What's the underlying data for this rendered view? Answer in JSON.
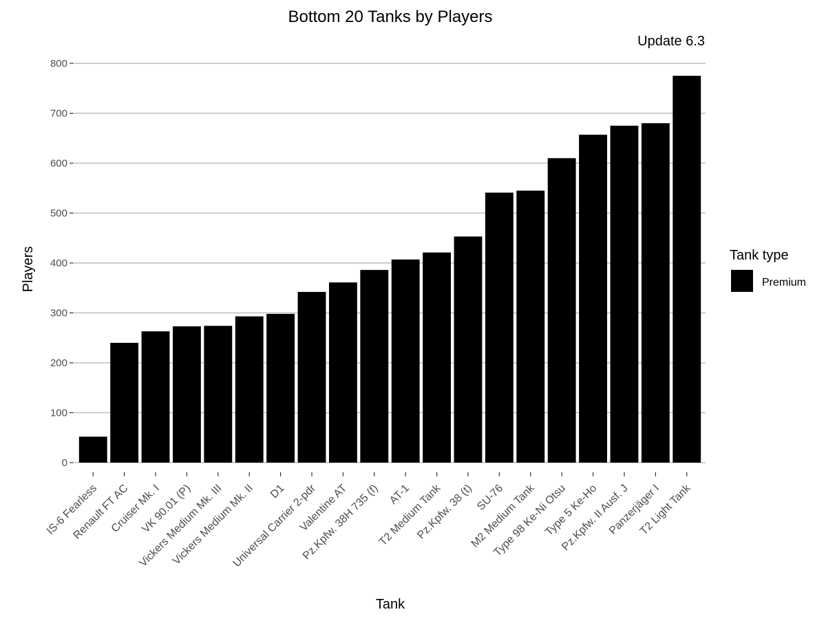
{
  "chart_data": {
    "type": "bar",
    "title": "Bottom 20 Tanks by Players",
    "subtitle": "Update 6.3",
    "xlabel": "Tank",
    "ylabel": "Players",
    "ylim": [
      0,
      800
    ],
    "yticks": [
      0,
      100,
      200,
      300,
      400,
      500,
      600,
      700,
      800
    ],
    "grid": "horizontal major lines",
    "legend": {
      "title": "Tank type",
      "placement": "right",
      "entries": [
        {
          "label": "Premium",
          "color": "#000000"
        }
      ]
    },
    "categories": [
      "IS-6 Fearless",
      "Renault FT AC",
      "Cruiser Mk. I",
      "VK 90.01 (P)",
      "Vickers Medium Mk. III",
      "Vickers Medium Mk. II",
      "D1",
      "Universal Carrier 2-pdr",
      "Valentine AT",
      "Pz.Kpfw. 38H 735 (f)",
      "AT-1",
      "T2 Medium Tank",
      "Pz.Kpfw. 38 (t)",
      "SU-76",
      "M2 Medium Tank",
      "Type 98 Ke-Ni Otsu",
      "Type 5 Ke-Ho",
      "Pz.Kpfw. II Ausf. J",
      "Panzerjäger I",
      "T2 Light Tank"
    ],
    "series": [
      {
        "name": "Premium",
        "color": "#000000",
        "values": [
          52,
          240,
          263,
          273,
          274,
          293,
          298,
          342,
          361,
          386,
          407,
          421,
          453,
          541,
          545,
          610,
          657,
          675,
          680,
          775
        ]
      }
    ]
  }
}
